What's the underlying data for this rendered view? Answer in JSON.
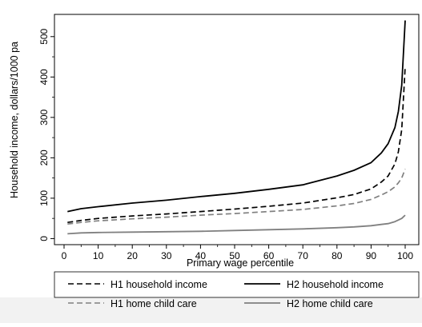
{
  "chart_data": {
    "type": "line",
    "xlabel": "Primary wage percentile",
    "ylabel": "Household income, dollars/1000 pa",
    "xlim": [
      0,
      100
    ],
    "ylim": [
      -15,
      555
    ],
    "x_ticks": [
      0,
      10,
      20,
      30,
      40,
      50,
      60,
      70,
      80,
      90,
      100
    ],
    "y_ticks": [
      0,
      100,
      200,
      300,
      400,
      500
    ],
    "grid": false,
    "legend_position": "bottom",
    "x": [
      1,
      5,
      10,
      20,
      30,
      40,
      50,
      60,
      70,
      80,
      85,
      90,
      93,
      95,
      97,
      98,
      99,
      100
    ],
    "series": [
      {
        "name": "H1 household income",
        "color": "#000000",
        "dash": "dashed",
        "values": [
          40,
          45,
          50,
          56,
          61,
          67,
          73,
          80,
          88,
          101,
          109,
          123,
          140,
          155,
          185,
          215,
          270,
          425
        ]
      },
      {
        "name": "H2 household income",
        "color": "#000000",
        "dash": "solid",
        "values": [
          67,
          74,
          79,
          88,
          95,
          104,
          112,
          122,
          133,
          155,
          169,
          188,
          212,
          235,
          275,
          315,
          380,
          540
        ]
      },
      {
        "name": "H1 home child care",
        "color": "#808080",
        "dash": "dashed",
        "values": [
          36,
          40,
          44,
          49,
          53,
          58,
          62,
          67,
          72,
          81,
          87,
          97,
          108,
          116,
          128,
          138,
          150,
          172
        ]
      },
      {
        "name": "H2 home child care",
        "color": "#808080",
        "dash": "solid",
        "values": [
          12,
          14,
          15,
          16,
          17,
          18,
          20,
          22,
          24,
          27,
          29,
          32,
          35,
          37,
          42,
          46,
          50,
          58
        ]
      }
    ]
  },
  "legend": {
    "items": [
      {
        "label": "H1 household income",
        "color": "#000000",
        "dash": "dashed"
      },
      {
        "label": "H2 household income",
        "color": "#000000",
        "dash": "solid"
      },
      {
        "label": "H1 home child care",
        "color": "#808080",
        "dash": "dashed"
      },
      {
        "label": "H2 home child care",
        "color": "#808080",
        "dash": "solid"
      }
    ]
  }
}
